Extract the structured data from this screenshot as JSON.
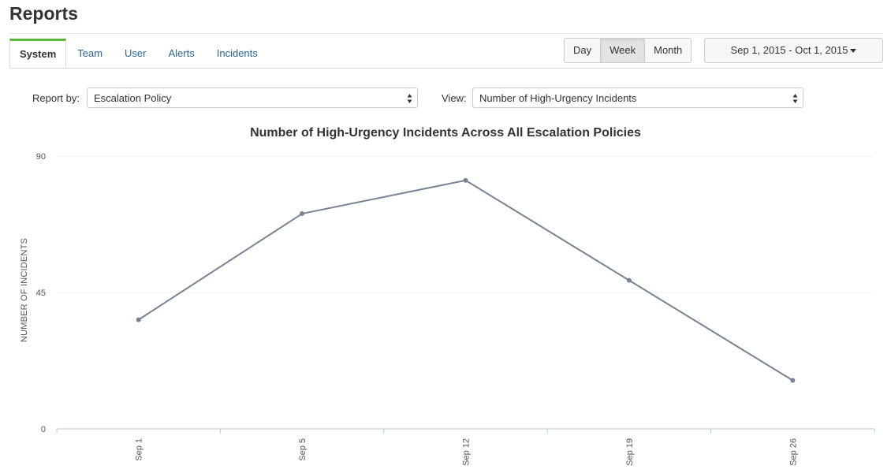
{
  "page": {
    "title": "Reports"
  },
  "tabs": [
    {
      "label": "System",
      "active": true
    },
    {
      "label": "Team",
      "active": false
    },
    {
      "label": "User",
      "active": false
    },
    {
      "label": "Alerts",
      "active": false
    },
    {
      "label": "Incidents",
      "active": false
    }
  ],
  "granularity": {
    "options": [
      "Day",
      "Week",
      "Month"
    ],
    "selected": "Week"
  },
  "date_range": {
    "label": "Sep 1, 2015 - Oct 1, 2015"
  },
  "filters": {
    "report_by_label": "Report by:",
    "report_by_value": "Escalation Policy",
    "view_label": "View:",
    "view_value": "Number of High-Urgency Incidents"
  },
  "colors": {
    "accent": "#5bb434",
    "link": "#2a6496",
    "series": "#768494",
    "grid": "#f0f0f0",
    "axis": "#b8c8d8"
  },
  "chart_data": {
    "type": "line",
    "title": "Number of High-Urgency Incidents Across All Escalation Policies",
    "xlabel": "",
    "ylabel": "NUMBER OF INCIDENTS",
    "categories": [
      "Sep 1",
      "Sep 5",
      "Sep 12",
      "Sep 19",
      "Sep 26"
    ],
    "series": [
      {
        "values": [
          36,
          71,
          82,
          49,
          16
        ]
      }
    ],
    "ylim": [
      0,
      90
    ],
    "yticks": [
      0,
      45,
      90
    ],
    "grid": true,
    "legend": "none"
  }
}
